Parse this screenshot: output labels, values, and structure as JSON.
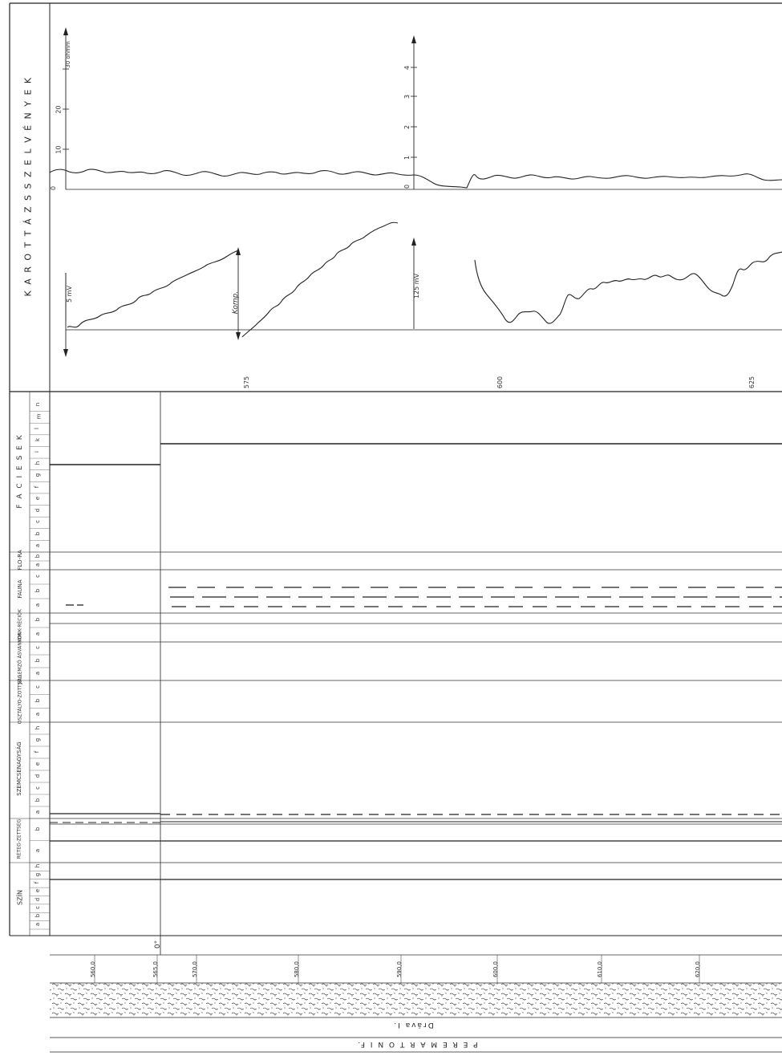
{
  "logs": {
    "title": "K A R O T T Á Z S   S Z E L V É N Y E K",
    "resistivity_unit": "30 ohmm",
    "resistivity_ticks": [
      "20",
      "10",
      "0"
    ],
    "right_axis_ticks": [
      "4",
      "3",
      "2",
      "1",
      "0"
    ],
    "sp_scale_left": "5 mV",
    "sp_scale_right": "125 mV",
    "komp_label": "Komp.",
    "depth_marks": [
      "575",
      "600",
      "625"
    ]
  },
  "tracks": [
    {
      "label": "F A C I E S E K",
      "letters": [
        "a",
        "b",
        "c",
        "d",
        "e",
        "f",
        "g",
        "h",
        "i",
        "k",
        "l",
        "m",
        "n"
      ]
    },
    {
      "label": "FLO-RA",
      "letters": [
        "a",
        "b"
      ]
    },
    {
      "label": "FAUNA",
      "letters": [
        "a",
        "b",
        "c"
      ]
    },
    {
      "label": "KONK-RÉCIÓK",
      "letters": [
        "a",
        "b"
      ]
    },
    {
      "label": "JELLEMZŐ ÁSVÁNYOK",
      "letters": [
        "a",
        "b",
        "c"
      ]
    },
    {
      "label": "OSZTÁLYO-ZOTTSÁG",
      "letters": [
        "a",
        "b",
        "c"
      ]
    },
    {
      "label": "SZEMCSENAGYSÁG",
      "letters": [
        "a",
        "b",
        "c",
        "d",
        "e",
        "f",
        "g",
        "h"
      ]
    },
    {
      "label": "RÉTEG-ZETTSÉG",
      "letters": [
        "a",
        "b"
      ]
    },
    {
      "label": "SZÍN",
      "letters": [
        "a",
        "b",
        "c",
        "d",
        "e",
        "f",
        "g",
        "h"
      ]
    }
  ],
  "depth_scale": {
    "marker": "0°",
    "labels": [
      "560,0",
      "565,0",
      "570,0",
      "580,0",
      "590,0",
      "600,0",
      "610,0",
      "620,0"
    ]
  },
  "formation": "Dráva I.",
  "unit": "P E R E M A R T O N I   F."
}
